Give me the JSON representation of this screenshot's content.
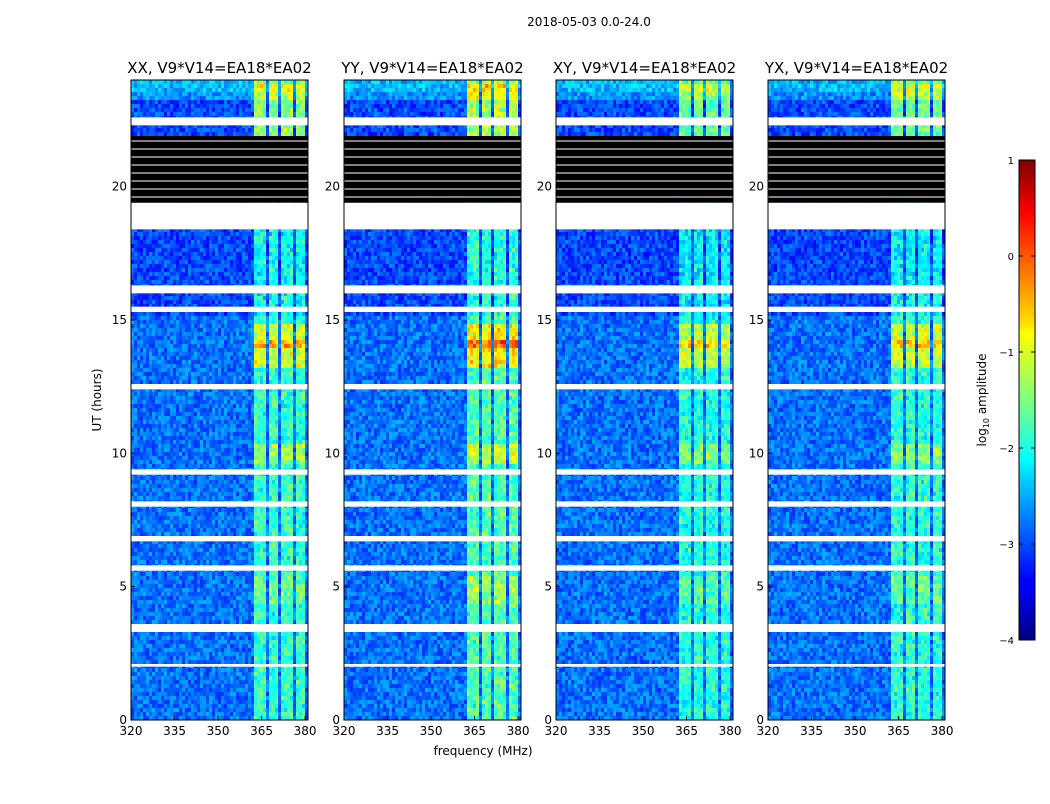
{
  "figure_title": "2018-05-03 0.0-24.0",
  "chart_data": {
    "type": "heatmap",
    "xlabel": "frequency (MHz)",
    "ylabel": "UT (hours)",
    "xlim": [
      320,
      381
    ],
    "ylim": [
      0,
      24
    ],
    "xticks": [
      320,
      335,
      350,
      365,
      380
    ],
    "yticks": [
      0,
      5,
      10,
      15,
      20
    ],
    "panels": [
      {
        "title": "XX, V9*V14=EA18*EA02",
        "rfi_strength": 1.0
      },
      {
        "title": "YY, V9*V14=EA18*EA02",
        "rfi_strength": 1.15
      },
      {
        "title": "XY, V9*V14=EA18*EA02",
        "rfi_strength": 0.9
      },
      {
        "title": "YX, V9*V14=EA18*EA02",
        "rfi_strength": 0.95
      }
    ],
    "rfi_bands_mhz": [
      [
        362.5,
        366.5
      ],
      [
        367.5,
        371.0
      ],
      [
        372.0,
        376.0
      ],
      [
        377.0,
        380.0
      ]
    ],
    "flagged_hours_white": [
      [
        18.4,
        19.4
      ],
      [
        22.3,
        22.6
      ],
      [
        16.0,
        16.3
      ],
      [
        15.3,
        15.5
      ],
      [
        12.4,
        12.6
      ],
      [
        9.2,
        9.4
      ],
      [
        8.0,
        8.2
      ],
      [
        6.7,
        6.9
      ],
      [
        5.6,
        5.8
      ],
      [
        3.3,
        3.6
      ],
      [
        2.0,
        2.1
      ]
    ],
    "flagged_hours_black": [
      [
        19.4,
        21.9
      ]
    ],
    "colorbar": {
      "label": "log10 amplitude",
      "range": [
        -4,
        1
      ],
      "ticks": [
        1,
        0,
        -1,
        -2,
        -3,
        -4
      ]
    }
  }
}
